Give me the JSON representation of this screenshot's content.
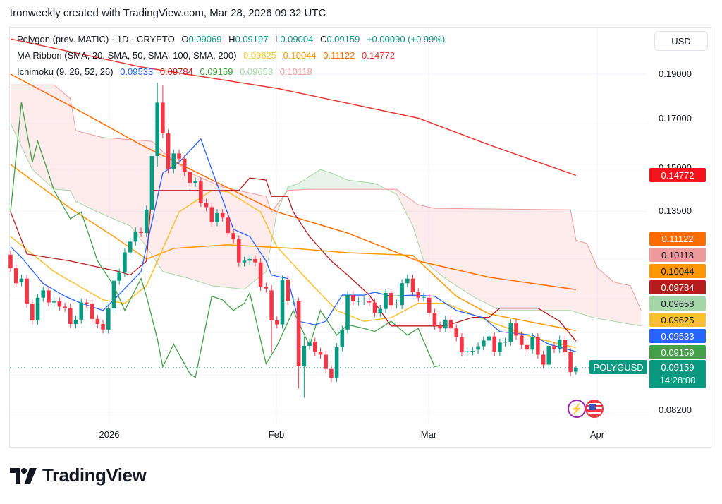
{
  "header": {
    "attribution": "tronweekly created with TradingView.com, Mar 28, 2026 09:32 UTC"
  },
  "legend": {
    "symbol": "Polygon (prev. MATIC) · 1D · CRYPTO",
    "ohlc": {
      "o_label": "O",
      "o": "0.09069",
      "h_label": "H",
      "h": "0.09197",
      "l_label": "L",
      "l": "0.09004",
      "c_label": "C",
      "c": "0.09159",
      "change": "+0.00090 (+0.99%)"
    },
    "ma_ribbon": {
      "title": "MA Ribbon (SMA, 20, SMA, 50, SMA, 100, SMA, 200)",
      "values": [
        "0.09625",
        "0.10044",
        "0.11122",
        "0.14772"
      ]
    },
    "ichimoku": {
      "title": "Ichimoku (9, 26, 52, 26)",
      "values": [
        "0.09533",
        "0.09784",
        "0.09159",
        "0.09658",
        "0.10118"
      ]
    }
  },
  "currency_button": "USD",
  "price_axis": {
    "scale": "log",
    "ticks": [
      "0.19000",
      "0.17000",
      "0.15000",
      "0.13500",
      "0.08200"
    ]
  },
  "time_axis": {
    "ticks": [
      "2026",
      "Feb",
      "Mar",
      "Apr"
    ]
  },
  "badges": [
    {
      "value": "0.14772",
      "bg": "#F7131E",
      "fg": "#ffffff"
    },
    {
      "value": "0.11122",
      "bg": "#FF6D00",
      "fg": "#ffffff"
    },
    {
      "value": "0.10118",
      "bg": "#EF9A9A",
      "fg": "#131722"
    },
    {
      "value": "0.10044",
      "bg": "#FF9800",
      "fg": "#131722"
    },
    {
      "value": "0.09784",
      "bg": "#B71C1C",
      "fg": "#ffffff"
    },
    {
      "value": "0.09658",
      "bg": "#A5D6A7",
      "fg": "#131722"
    },
    {
      "value": "0.09625",
      "bg": "#FBC02D",
      "fg": "#131722"
    },
    {
      "value": "0.09533",
      "bg": "#2962FF",
      "fg": "#ffffff"
    },
    {
      "value": "0.09159",
      "bg": "#43A047",
      "fg": "#ffffff"
    }
  ],
  "last_price": {
    "symbol": "POLYGUSD",
    "price": "0.09159",
    "countdown": "14:28:00"
  },
  "branding": {
    "logo_text": "TradingView"
  },
  "event_icons": [
    "lightning-icon",
    "us-flag-icon"
  ],
  "colors": {
    "up": "#089981",
    "down": "#F23645",
    "sma20": "#FBC02D",
    "sma50": "#FF9800",
    "sma100": "#FF6D00",
    "sma200": "#E53935",
    "conversion": "#2962FF",
    "base": "#B71C1C",
    "lagging": "#43A047",
    "span_a": "#A5D6A7",
    "span_b": "#EF9A9A"
  },
  "chart_data": {
    "type": "candlestick",
    "date_range": [
      "2025-12-15",
      "2026-03-28"
    ],
    "interval": "1D",
    "y_scale": "log",
    "candles_oc_or_ohlc": [
      [
        0.1213,
        0.1173
      ],
      [
        0.1173,
        0.113
      ],
      [
        0.1133,
        0.1143
      ],
      [
        0.1143,
        0.1074
      ],
      [
        0.1074,
        0.103
      ],
      [
        0.103,
        0.109
      ],
      [
        0.109,
        0.111
      ],
      [
        0.111,
        0.1077
      ],
      [
        0.1077,
        0.108
      ],
      [
        0.108,
        0.1066
      ],
      [
        0.1066,
        0.1063
      ],
      [
        0.1063,
        0.1021
      ],
      [
        0.1021,
        0.1032
      ],
      [
        0.1032,
        0.1077
      ],
      [
        0.1077,
        0.1074
      ],
      [
        0.1074,
        0.1034
      ],
      [
        0.1034,
        0.1021
      ],
      [
        0.1021,
        0.1007
      ],
      [
        0.1007,
        0.1061
      ],
      [
        0.1061,
        0.1137
      ],
      [
        0.1137,
        0.116
      ],
      [
        0.116,
        0.122
      ],
      [
        0.122,
        0.1253
      ],
      [
        0.1253,
        0.1285
      ],
      [
        0.1285,
        0.128
      ],
      [
        0.128,
        0.1357
      ],
      [
        0.1357,
        0.155
      ],
      [
        0.155,
        0.186,
        0.151,
        0.177
      ],
      [
        0.177,
        0.185,
        0.162,
        0.164
      ],
      [
        0.164,
        0.15
      ],
      [
        0.15,
        0.156
      ],
      [
        0.156,
        0.154
      ],
      [
        0.154,
        0.149
      ],
      [
        0.149,
        0.145
      ],
      [
        0.145,
        0.1455
      ],
      [
        0.1455,
        0.138
      ],
      [
        0.138,
        0.1365
      ],
      [
        0.1365,
        0.1315
      ],
      [
        0.1315,
        0.1345
      ],
      [
        0.1345,
        0.133
      ],
      [
        0.133,
        0.128
      ],
      [
        0.128,
        0.126
      ],
      [
        0.126,
        0.119
      ],
      [
        0.119,
        0.1195
      ],
      [
        0.1195,
        0.12
      ],
      [
        0.12,
        0.119
      ],
      [
        0.119,
        0.112
      ],
      [
        0.112,
        0.1115
      ],
      [
        0.111,
        0.1125,
        0.095,
        0.103
      ],
      [
        0.103,
        0.102
      ],
      [
        0.102,
        0.114
      ],
      [
        0.114,
        0.108
      ],
      [
        0.108,
        0.1082
      ],
      [
        0.108,
        0.109,
        0.087,
        0.0919
      ],
      [
        0.0919,
        0.099,
        0.085,
        0.0967
      ],
      [
        0.0967,
        0.0975
      ],
      [
        0.0977,
        0.0953
      ],
      [
        0.0953,
        0.0946
      ],
      [
        0.0946,
        0.0913
      ],
      [
        0.0913,
        0.0893
      ],
      [
        0.0893,
        0.0964
      ],
      [
        0.0964,
        0.1007
      ],
      [
        0.1007,
        0.1097
      ],
      [
        0.1097,
        0.108
      ],
      [
        0.108,
        0.1081
      ],
      [
        0.1081,
        0.1082
      ],
      [
        0.108,
        0.1077
      ],
      [
        0.1077,
        0.105
      ],
      [
        0.105,
        0.106
      ],
      [
        0.106,
        0.1103
      ],
      [
        0.1103,
        0.107
      ],
      [
        0.1072,
        0.1074
      ],
      [
        0.107,
        0.113
      ],
      [
        0.113,
        0.1143
      ],
      [
        0.1143,
        0.1105
      ],
      [
        0.1105,
        0.109
      ],
      [
        0.109,
        0.1092
      ],
      [
        0.109,
        0.105
      ],
      [
        0.105,
        0.1017
      ],
      [
        0.1017,
        0.101
      ],
      [
        0.101,
        0.1032
      ],
      [
        0.1032,
        0.101
      ],
      [
        0.101,
        0.0988
      ],
      [
        0.0988,
        0.0952
      ],
      [
        0.0952,
        0.0954
      ],
      [
        0.0954,
        0.0955
      ],
      [
        0.0958,
        0.0966
      ],
      [
        0.0966,
        0.098
      ],
      [
        0.098,
        0.099
      ],
      [
        0.099,
        0.0953
      ],
      [
        0.0953,
        0.0975
      ],
      [
        0.0975,
        0.0977
      ],
      [
        0.0977,
        0.1023
      ],
      [
        0.1023,
        0.0992
      ],
      [
        0.0992,
        0.0969
      ],
      [
        0.0969,
        0.0958
      ],
      [
        0.0958,
        0.0988
      ],
      [
        0.0988,
        0.0946
      ],
      [
        0.0946,
        0.0923
      ],
      [
        0.0923,
        0.0967
      ],
      [
        0.0967,
        0.096
      ],
      [
        0.096,
        0.0982
      ],
      [
        0.0982,
        0.0952
      ],
      [
        0.0952,
        0.0906
      ],
      [
        0.09069,
        0.09197,
        0.09004,
        0.09159
      ]
    ],
    "indicators_bar_index_price": {
      "sma200": [
        [
          0,
          0.2074
        ],
        [
          24,
          0.1934
        ],
        [
          49,
          0.1834
        ],
        [
          75,
          0.1703
        ],
        [
          88,
          0.1594
        ],
        [
          104,
          0.14772
        ]
      ],
      "sma100": [
        [
          0,
          0.19
        ],
        [
          11,
          0.1756
        ],
        [
          24,
          0.1594
        ],
        [
          37,
          0.1461
        ],
        [
          49,
          0.1349
        ],
        [
          62,
          0.128
        ],
        [
          75,
          0.1194
        ],
        [
          88,
          0.1147
        ],
        [
          104,
          0.11122
        ]
      ],
      "sma50": [
        [
          0,
          0.1518
        ],
        [
          11,
          0.1361
        ],
        [
          19,
          0.1269
        ],
        [
          25,
          0.12
        ],
        [
          30,
          0.1232
        ],
        [
          40,
          0.1243
        ],
        [
          52,
          0.1232
        ],
        [
          62,
          0.1219
        ],
        [
          74,
          0.1211
        ],
        [
          82,
          0.1094
        ],
        [
          88,
          0.1047
        ],
        [
          104,
          0.10044
        ]
      ],
      "sma20": [
        [
          0,
          0.1269
        ],
        [
          8,
          0.1163
        ],
        [
          17,
          0.1084
        ],
        [
          21,
          0.1075
        ],
        [
          25,
          0.1123
        ],
        [
          31,
          0.1349
        ],
        [
          37,
          0.1423
        ],
        [
          40,
          0.1418
        ],
        [
          46,
          0.1349
        ],
        [
          49,
          0.1237
        ],
        [
          55,
          0.1133
        ],
        [
          60,
          0.1056
        ],
        [
          65,
          0.1028
        ],
        [
          70,
          0.1037
        ],
        [
          75,
          0.1075
        ],
        [
          80,
          0.1075
        ],
        [
          88,
          0.1028
        ],
        [
          96,
          0.0988
        ],
        [
          104,
          0.09625
        ]
      ],
      "conversion": [
        [
          0,
          0.1237
        ],
        [
          2,
          0.1205
        ],
        [
          6,
          0.1129
        ],
        [
          10,
          0.1094
        ],
        [
          13,
          0.1075
        ],
        [
          17,
          0.1056
        ],
        [
          19,
          0.1084
        ],
        [
          24,
          0.1163
        ],
        [
          28,
          0.1486
        ],
        [
          31,
          0.1526
        ],
        [
          35,
          0.1617
        ],
        [
          37,
          0.1499
        ],
        [
          41,
          0.1292
        ],
        [
          44,
          0.1269
        ],
        [
          47,
          0.1194
        ],
        [
          48,
          0.1153
        ],
        [
          51,
          0.1143
        ],
        [
          53,
          0.1028
        ],
        [
          56,
          0.1019
        ],
        [
          58,
          0.1028
        ],
        [
          61,
          0.1097
        ],
        [
          65,
          0.1097
        ],
        [
          67,
          0.1105
        ],
        [
          70,
          0.1094
        ],
        [
          74,
          0.1097
        ],
        [
          78,
          0.1094
        ],
        [
          82,
          0.1056
        ],
        [
          87,
          0.1037
        ],
        [
          90,
          0.1002
        ],
        [
          96,
          0.0993
        ],
        [
          99,
          0.0971
        ],
        [
          104,
          0.09533
        ]
      ],
      "base": [
        [
          0,
          0.1349
        ],
        [
          3,
          0.1215
        ],
        [
          11,
          0.1194
        ],
        [
          17,
          0.1173
        ],
        [
          20,
          0.1163
        ],
        [
          22,
          0.1153
        ],
        [
          25,
          0.1194
        ],
        [
          26,
          0.1423
        ],
        [
          42,
          0.1423
        ],
        [
          44,
          0.1468
        ],
        [
          47,
          0.146
        ],
        [
          48,
          0.1402
        ],
        [
          51,
          0.1402
        ],
        [
          52,
          0.1349
        ],
        [
          55,
          0.1269
        ],
        [
          59,
          0.1194
        ],
        [
          62,
          0.1153
        ],
        [
          66,
          0.1097
        ],
        [
          70,
          0.1016
        ],
        [
          80,
          0.1016
        ],
        [
          85,
          0.1038
        ],
        [
          88,
          0.1038
        ],
        [
          90,
          0.1062
        ],
        [
          97,
          0.1062
        ],
        [
          101,
          0.1028
        ],
        [
          104,
          0.09784
        ]
      ],
      "lagging": [
        [
          0,
          0.1349
        ],
        [
          2,
          0.1771
        ],
        [
          4,
          0.1526
        ],
        [
          5,
          0.1608
        ],
        [
          8,
          0.1423
        ],
        [
          11,
          0.1326
        ],
        [
          13,
          0.1349
        ],
        [
          16,
          0.1194
        ],
        [
          19,
          0.1123
        ],
        [
          21,
          0.1056
        ],
        [
          24,
          0.1143
        ],
        [
          25,
          0.1094
        ],
        [
          27,
          0.0984
        ],
        [
          28,
          0.0918
        ],
        [
          30,
          0.0971
        ],
        [
          33,
          0.0902
        ],
        [
          34,
          0.0894
        ],
        [
          37,
          0.1094
        ],
        [
          39,
          0.1084
        ],
        [
          41,
          0.1056
        ],
        [
          43,
          0.1075
        ],
        [
          44,
          0.1103
        ],
        [
          47,
          0.0925
        ],
        [
          49,
          0.0967
        ],
        [
          52,
          0.1056
        ],
        [
          55,
          0.0967
        ],
        [
          57,
          0.1056
        ],
        [
          60,
          0.0993
        ],
        [
          62,
          0.1019
        ],
        [
          65,
          0.101
        ],
        [
          67,
          0.1002
        ],
        [
          70,
          0.1028
        ],
        [
          73,
          0.0993
        ],
        [
          75,
          0.101
        ],
        [
          78,
          0.0918
        ],
        [
          79,
          0.0921
        ]
      ],
      "span_a": [
        [
          0,
          0.168
        ],
        [
          4,
          0.1499
        ],
        [
          8,
          0.1427
        ],
        [
          11,
          0.1423
        ],
        [
          12,
          0.1385
        ],
        [
          16,
          0.1349
        ],
        [
          22,
          0.1303
        ],
        [
          25,
          0.1237
        ],
        [
          28,
          0.1163
        ],
        [
          33,
          0.1143
        ],
        [
          37,
          0.1123
        ],
        [
          43,
          0.1113
        ],
        [
          47,
          0.1163
        ],
        [
          49,
          0.1349
        ],
        [
          51,
          0.1435
        ],
        [
          53,
          0.1448
        ],
        [
          57,
          0.1499
        ],
        [
          59,
          0.1486
        ],
        [
          62,
          0.146
        ],
        [
          67,
          0.1448
        ],
        [
          71,
          0.141
        ],
        [
          74,
          0.1303
        ],
        [
          76,
          0.1194
        ],
        [
          80,
          0.1143
        ],
        [
          85,
          0.1094
        ],
        [
          90,
          0.1056
        ],
        [
          103,
          0.1056
        ],
        [
          107,
          0.1038
        ],
        [
          111,
          0.1028
        ],
        [
          116,
          0.1016
        ]
      ],
      "span_b": [
        [
          0,
          0.185
        ],
        [
          8,
          0.185
        ],
        [
          11,
          0.1787
        ],
        [
          12,
          0.1651
        ],
        [
          17,
          0.1623
        ],
        [
          26,
          0.1608
        ],
        [
          28,
          0.1567
        ],
        [
          33,
          0.1486
        ],
        [
          39,
          0.1435
        ],
        [
          47,
          0.1402
        ],
        [
          48,
          0.1349
        ],
        [
          51,
          0.1423
        ],
        [
          55,
          0.1427
        ],
        [
          71,
          0.1427
        ],
        [
          75,
          0.1373
        ],
        [
          78,
          0.1361
        ],
        [
          103,
          0.1356
        ],
        [
          104,
          0.1258
        ],
        [
          106,
          0.1247
        ],
        [
          108,
          0.1173
        ],
        [
          111,
          0.1133
        ],
        [
          114,
          0.1123
        ],
        [
          116,
          0.1056
        ]
      ]
    },
    "last_close": 0.09159
  }
}
